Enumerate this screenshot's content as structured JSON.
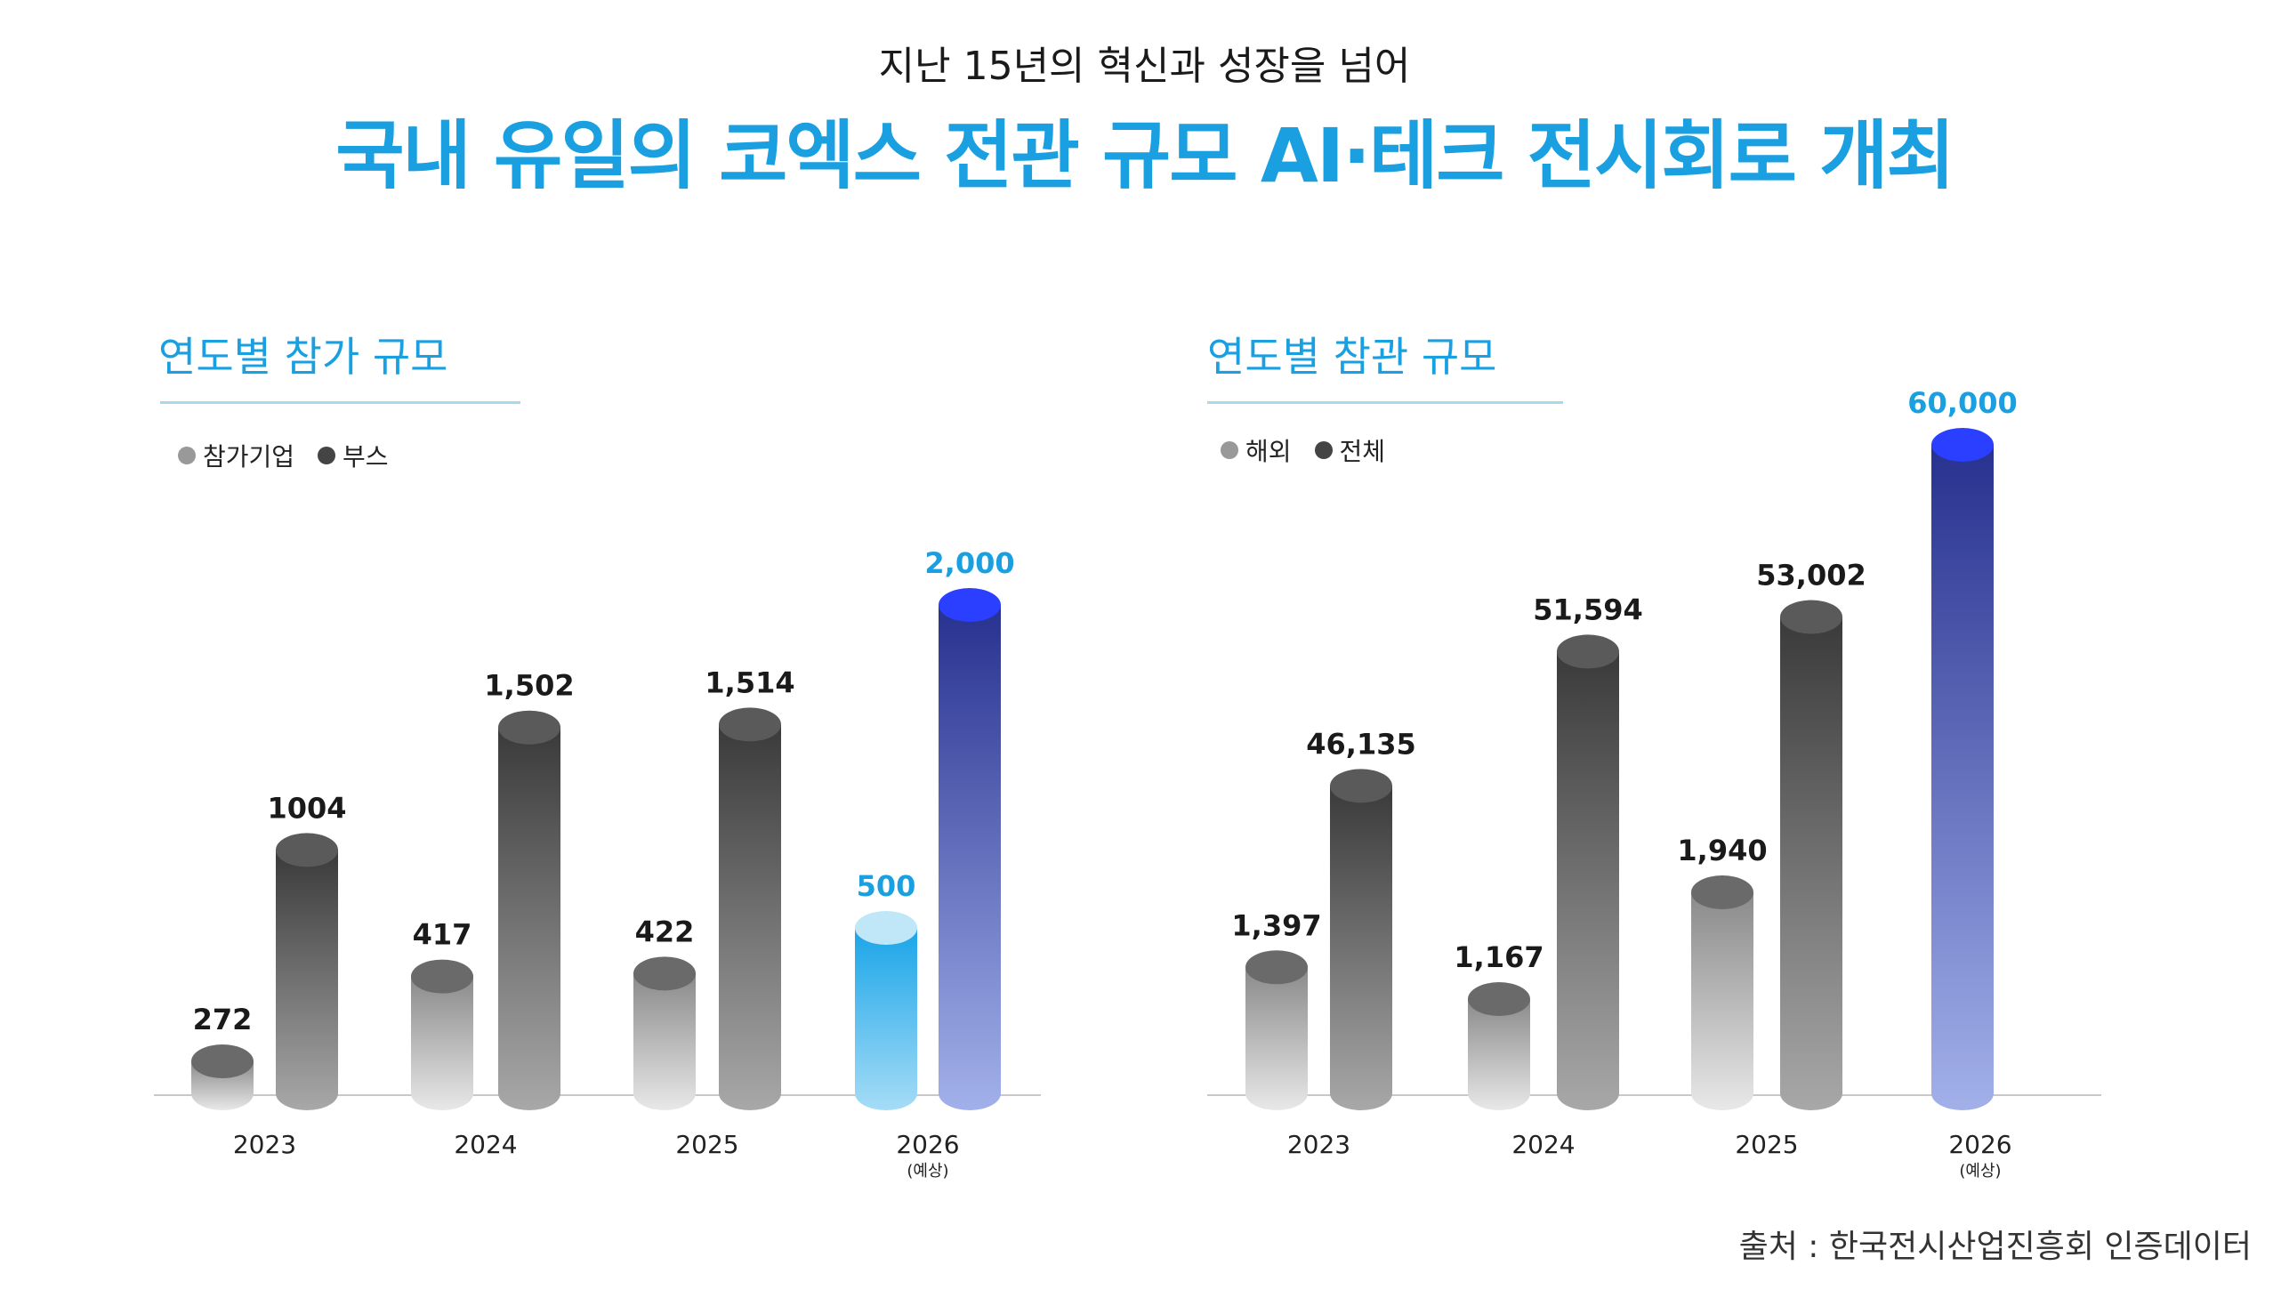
{
  "header": {
    "subtitle": "지난 15년의 혁신과 성장을 넘어",
    "headline": "국내 유일의 코엑스 전관 규모 AI·테크 전시회로 개최"
  },
  "colors": {
    "accent": "#1aa0e0",
    "legend_light": "#999999",
    "legend_dark": "#444444"
  },
  "chart_data": [
    {
      "type": "bar",
      "title": "연도별 참가 규모",
      "legend": [
        "참가기업",
        "부스"
      ],
      "categories": [
        "2023",
        "2024",
        "2025",
        "2026"
      ],
      "category_notes": [
        "",
        "",
        "",
        "(예상)"
      ],
      "series": [
        {
          "name": "참가기업",
          "values": [
            272,
            417,
            422,
            500
          ],
          "labels": [
            "272",
            "417",
            "422",
            "500"
          ]
        },
        {
          "name": "부스",
          "values": [
            1004,
            1502,
            1514,
            2000
          ],
          "labels": [
            "1004",
            "1,502",
            "1,514",
            "2,000"
          ]
        }
      ],
      "ylim": [
        0,
        2000
      ],
      "highlight_category": "2026"
    },
    {
      "type": "bar",
      "title": "연도별 참관 규모",
      "legend": [
        "해외",
        "전체"
      ],
      "categories": [
        "2023",
        "2024",
        "2025",
        "2026"
      ],
      "category_notes": [
        "",
        "",
        "",
        "(예상)"
      ],
      "series": [
        {
          "name": "해외",
          "values": [
            1397,
            1167,
            1940,
            null
          ],
          "labels": [
            "1,397",
            "1,167",
            "1,940",
            ""
          ]
        },
        {
          "name": "전체",
          "values": [
            46135,
            51594,
            53002,
            60000
          ],
          "labels": [
            "46,135",
            "51,594",
            "53,002",
            "60,000"
          ]
        }
      ],
      "highlight_category": "2026"
    }
  ],
  "source": "출처 : 한국전시산업진흥회 인증데이터"
}
